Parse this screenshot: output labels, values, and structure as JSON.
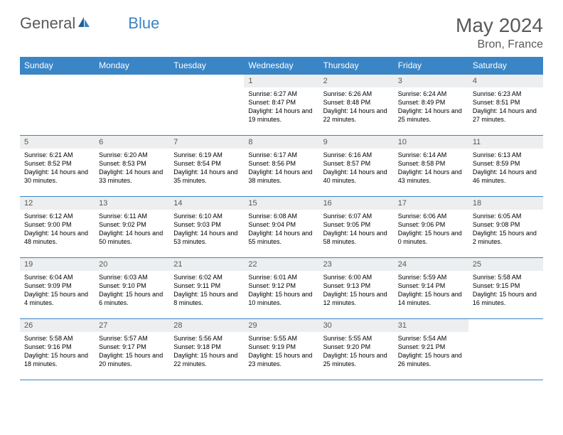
{
  "brand": {
    "name1": "General",
    "name2": "Blue"
  },
  "title": {
    "month_year": "May 2024",
    "location": "Bron, France"
  },
  "colors": {
    "header_bg": "#3a85c6",
    "header_fg": "#ffffff",
    "daynum_bg": "#eceeef",
    "text_gray": "#595959",
    "border": "#3a85c6"
  },
  "weekdays": [
    "Sunday",
    "Monday",
    "Tuesday",
    "Wednesday",
    "Thursday",
    "Friday",
    "Saturday"
  ],
  "weeks": [
    [
      null,
      null,
      null,
      {
        "n": "1",
        "sr": "6:27 AM",
        "ss": "8:47 PM",
        "dl": "14 hours and 19 minutes."
      },
      {
        "n": "2",
        "sr": "6:26 AM",
        "ss": "8:48 PM",
        "dl": "14 hours and 22 minutes."
      },
      {
        "n": "3",
        "sr": "6:24 AM",
        "ss": "8:49 PM",
        "dl": "14 hours and 25 minutes."
      },
      {
        "n": "4",
        "sr": "6:23 AM",
        "ss": "8:51 PM",
        "dl": "14 hours and 27 minutes."
      }
    ],
    [
      {
        "n": "5",
        "sr": "6:21 AM",
        "ss": "8:52 PM",
        "dl": "14 hours and 30 minutes."
      },
      {
        "n": "6",
        "sr": "6:20 AM",
        "ss": "8:53 PM",
        "dl": "14 hours and 33 minutes."
      },
      {
        "n": "7",
        "sr": "6:19 AM",
        "ss": "8:54 PM",
        "dl": "14 hours and 35 minutes."
      },
      {
        "n": "8",
        "sr": "6:17 AM",
        "ss": "8:56 PM",
        "dl": "14 hours and 38 minutes."
      },
      {
        "n": "9",
        "sr": "6:16 AM",
        "ss": "8:57 PM",
        "dl": "14 hours and 40 minutes."
      },
      {
        "n": "10",
        "sr": "6:14 AM",
        "ss": "8:58 PM",
        "dl": "14 hours and 43 minutes."
      },
      {
        "n": "11",
        "sr": "6:13 AM",
        "ss": "8:59 PM",
        "dl": "14 hours and 46 minutes."
      }
    ],
    [
      {
        "n": "12",
        "sr": "6:12 AM",
        "ss": "9:00 PM",
        "dl": "14 hours and 48 minutes."
      },
      {
        "n": "13",
        "sr": "6:11 AM",
        "ss": "9:02 PM",
        "dl": "14 hours and 50 minutes."
      },
      {
        "n": "14",
        "sr": "6:10 AM",
        "ss": "9:03 PM",
        "dl": "14 hours and 53 minutes."
      },
      {
        "n": "15",
        "sr": "6:08 AM",
        "ss": "9:04 PM",
        "dl": "14 hours and 55 minutes."
      },
      {
        "n": "16",
        "sr": "6:07 AM",
        "ss": "9:05 PM",
        "dl": "14 hours and 58 minutes."
      },
      {
        "n": "17",
        "sr": "6:06 AM",
        "ss": "9:06 PM",
        "dl": "15 hours and 0 minutes."
      },
      {
        "n": "18",
        "sr": "6:05 AM",
        "ss": "9:08 PM",
        "dl": "15 hours and 2 minutes."
      }
    ],
    [
      {
        "n": "19",
        "sr": "6:04 AM",
        "ss": "9:09 PM",
        "dl": "15 hours and 4 minutes."
      },
      {
        "n": "20",
        "sr": "6:03 AM",
        "ss": "9:10 PM",
        "dl": "15 hours and 6 minutes."
      },
      {
        "n": "21",
        "sr": "6:02 AM",
        "ss": "9:11 PM",
        "dl": "15 hours and 8 minutes."
      },
      {
        "n": "22",
        "sr": "6:01 AM",
        "ss": "9:12 PM",
        "dl": "15 hours and 10 minutes."
      },
      {
        "n": "23",
        "sr": "6:00 AM",
        "ss": "9:13 PM",
        "dl": "15 hours and 12 minutes."
      },
      {
        "n": "24",
        "sr": "5:59 AM",
        "ss": "9:14 PM",
        "dl": "15 hours and 14 minutes."
      },
      {
        "n": "25",
        "sr": "5:58 AM",
        "ss": "9:15 PM",
        "dl": "15 hours and 16 minutes."
      }
    ],
    [
      {
        "n": "26",
        "sr": "5:58 AM",
        "ss": "9:16 PM",
        "dl": "15 hours and 18 minutes."
      },
      {
        "n": "27",
        "sr": "5:57 AM",
        "ss": "9:17 PM",
        "dl": "15 hours and 20 minutes."
      },
      {
        "n": "28",
        "sr": "5:56 AM",
        "ss": "9:18 PM",
        "dl": "15 hours and 22 minutes."
      },
      {
        "n": "29",
        "sr": "5:55 AM",
        "ss": "9:19 PM",
        "dl": "15 hours and 23 minutes."
      },
      {
        "n": "30",
        "sr": "5:55 AM",
        "ss": "9:20 PM",
        "dl": "15 hours and 25 minutes."
      },
      {
        "n": "31",
        "sr": "5:54 AM",
        "ss": "9:21 PM",
        "dl": "15 hours and 26 minutes."
      },
      null
    ]
  ],
  "labels": {
    "sunrise": "Sunrise: ",
    "sunset": "Sunset: ",
    "daylight": "Daylight: "
  }
}
